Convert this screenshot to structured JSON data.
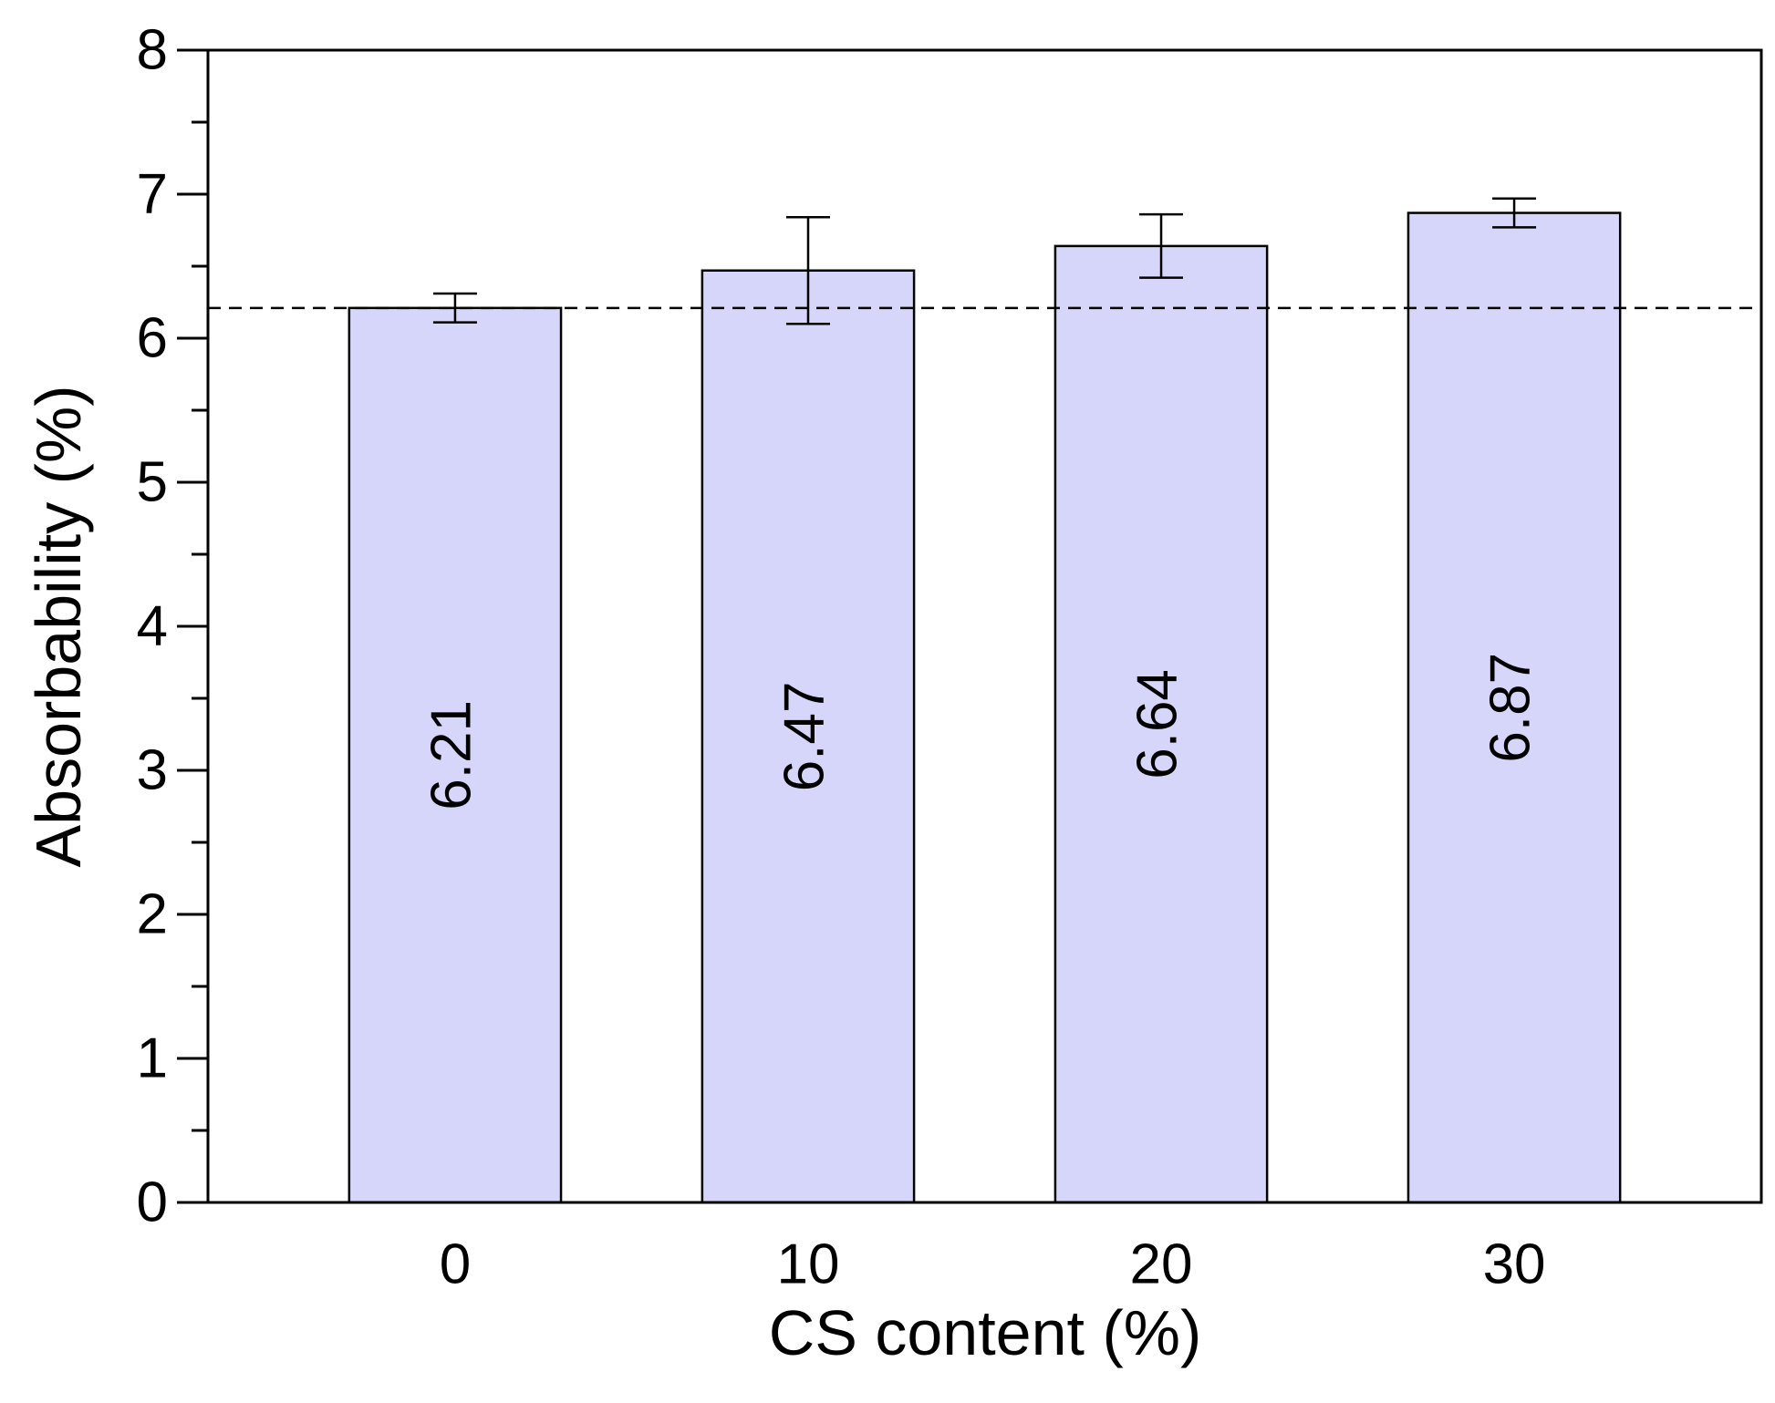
{
  "chart_data": {
    "type": "bar",
    "x_label": "CS content (%)",
    "y_label": "Absorbability (%)",
    "x": [
      0,
      10,
      20,
      30
    ],
    "values": [
      6.21,
      6.47,
      6.64,
      6.87
    ],
    "errors": [
      0.1,
      0.37,
      0.22,
      0.1
    ],
    "value_labels": [
      "6.21",
      "6.47",
      "6.64",
      "6.87"
    ],
    "bar_width": 6,
    "color": "#d6d6fa",
    "reference_line": 6.21,
    "xlim": [
      -7,
      37
    ],
    "xticks": [
      0,
      10,
      20,
      30
    ],
    "ylim": [
      0,
      8
    ],
    "yticks": [
      0,
      1,
      2,
      3,
      4,
      5,
      6,
      7,
      8
    ],
    "yminorticks": [
      0.5,
      1.5,
      2.5,
      3.5,
      4.5,
      5.5,
      6.5,
      7.5
    ]
  }
}
